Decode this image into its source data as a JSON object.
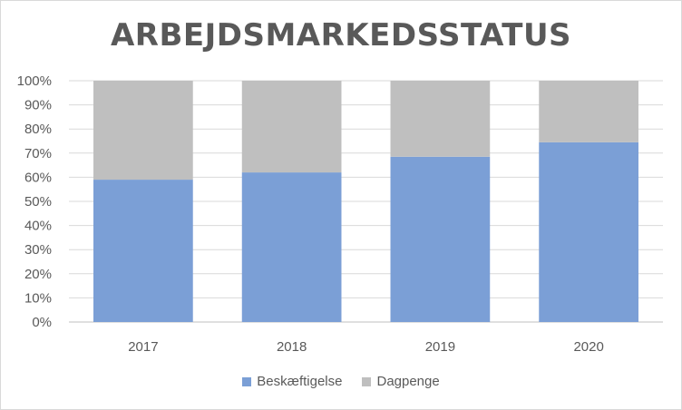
{
  "chart_data": {
    "type": "bar",
    "stacked": true,
    "title": "ARBEJDSMARKEDSSTATUS",
    "xlabel": "",
    "ylabel": "",
    "categories": [
      "2017",
      "2018",
      "2019",
      "2020"
    ],
    "series": [
      {
        "name": "Beskæftigelse",
        "values": [
          59,
          62,
          68.5,
          74.5
        ],
        "color": "#7b9fd6"
      },
      {
        "name": "Dagpenge",
        "values": [
          41,
          38,
          31.5,
          25.5
        ],
        "color": "#bfbfbf"
      }
    ],
    "ylim": [
      0,
      100
    ],
    "yticks": [
      "0%",
      "10%",
      "20%",
      "30%",
      "40%",
      "50%",
      "60%",
      "70%",
      "80%",
      "90%",
      "100%"
    ],
    "grid": true,
    "legend_position": "bottom"
  }
}
